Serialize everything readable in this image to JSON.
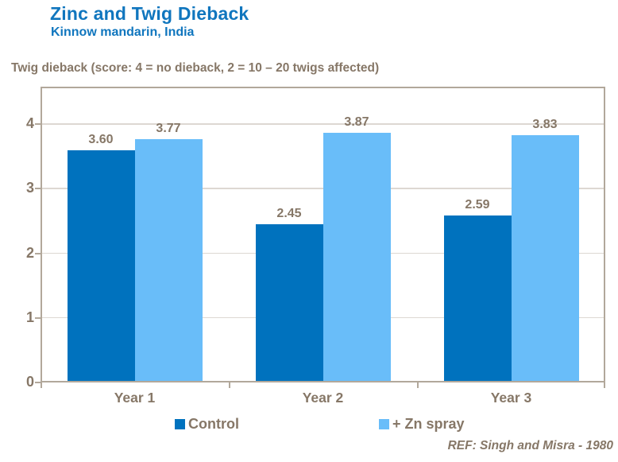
{
  "header": {
    "title": "Zinc and Twig Dieback",
    "subtitle": "Kinnow mandarin, India"
  },
  "axis_title": "Twig dieback (score: 4 = no dieback, 2 = 10 – 20 twigs affected)",
  "reference": "REF: Singh and Misra - 1980",
  "colors": {
    "title_blue": "#1076BE",
    "control_bar": "#0072BE",
    "zn_spray_bar": "#69BDF9",
    "text_brown": "#867767",
    "gridline": "#DDD8D2",
    "axis_frame": "#B2A89B",
    "background": "#FFFFFF"
  },
  "chart_data": {
    "type": "bar",
    "title": "Zinc and Twig Dieback",
    "subtitle": "Kinnow mandarin, India",
    "ylabel": "Twig dieback (score: 4 = no dieback, 2 = 10 – 20 twigs affected)",
    "xlabel": "",
    "categories": [
      "Year 1",
      "Year 2",
      "Year 3"
    ],
    "series": [
      {
        "name": "Control",
        "color": "#0072BE",
        "values": [
          3.6,
          2.45,
          2.59
        ]
      },
      {
        "name": "+ Zn spray",
        "color": "#69BDF9",
        "values": [
          3.77,
          3.87,
          3.83
        ]
      }
    ],
    "value_label_decimals": 2,
    "ylim": [
      0,
      4.58
    ],
    "yticks": [
      0,
      1,
      2,
      3,
      4
    ],
    "grid": "horizontal",
    "legend_position": "bottom",
    "annotation": "REF: Singh and Misra - 1980"
  }
}
